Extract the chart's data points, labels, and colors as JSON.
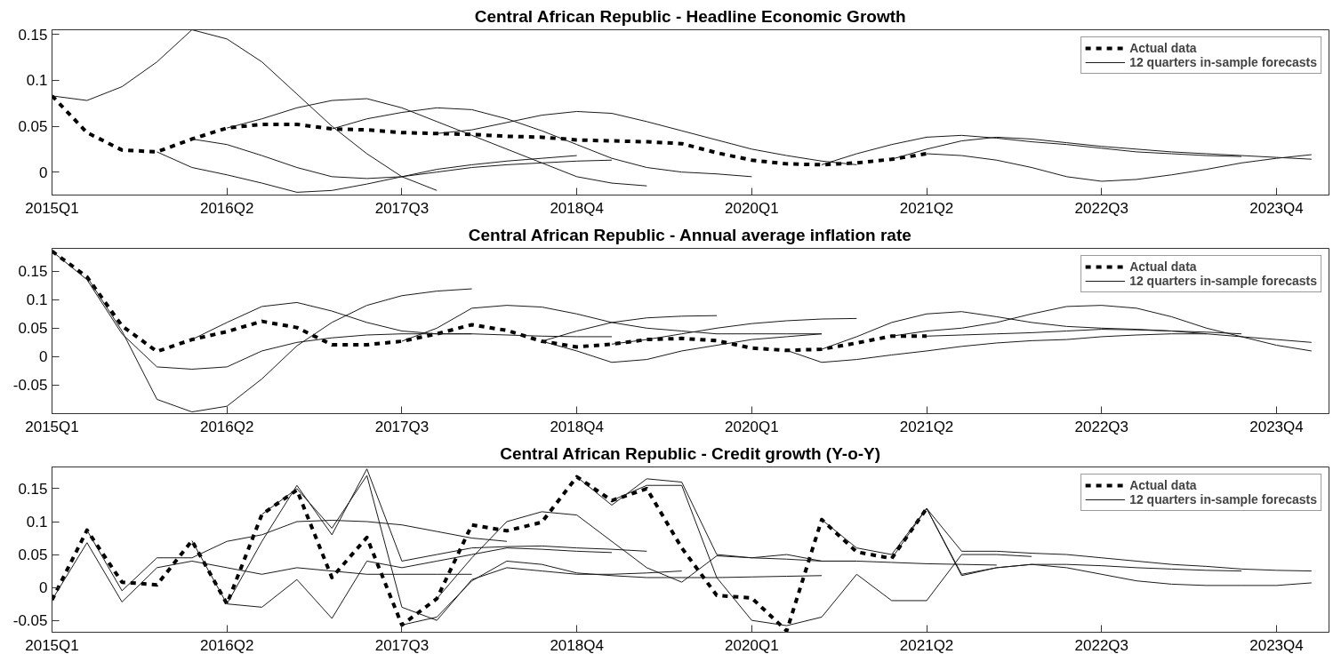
{
  "chart_data": [
    {
      "type": "line",
      "title": "Central African Republic - Headline Economic Growth",
      "legend": "top right",
      "categories": [
        "2015Q1",
        null,
        null,
        null,
        null,
        "2016Q2",
        null,
        null,
        null,
        null,
        "2017Q3",
        null,
        null,
        null,
        null,
        "2018Q4",
        null,
        null,
        null,
        null,
        "2020Q1",
        null,
        null,
        null,
        null,
        "2021Q2",
        null,
        null,
        null,
        null,
        "2022Q3",
        null,
        null,
        null,
        null,
        "2023Q4",
        null
      ],
      "ylim": [
        -0.025,
        0.155
      ],
      "yticks": [
        0,
        0.05,
        0.1,
        0.15
      ],
      "series": [
        {
          "name": "Actual data",
          "color": "#000000",
          "line_style": "dashed",
          "values": [
            0.083,
            0.043,
            0.024,
            0.022,
            0.036,
            0.048,
            0.052,
            0.052,
            0.047,
            0.046,
            0.043,
            0.042,
            0.041,
            0.039,
            0.038,
            0.035,
            0.034,
            0.033,
            0.031,
            0.021,
            0.013,
            0.009,
            0.008,
            0.01,
            0.014,
            0.02,
            null,
            null,
            null,
            null,
            null,
            null,
            null,
            null,
            null,
            null,
            null
          ]
        },
        {
          "name": "12 quarters in-sample forecasts",
          "color": "#1a1a1a",
          "line_style": "solid",
          "values": [
            0.083,
            0.078,
            0.093,
            0.12,
            0.155,
            0.145,
            0.12,
            0.085,
            0.05,
            0.02,
            -0.005,
            -0.02,
            null,
            null,
            null,
            null,
            null,
            null,
            null,
            null,
            null,
            null,
            null,
            null,
            null,
            null,
            null,
            null,
            null,
            null,
            null,
            null,
            null,
            null,
            null,
            null,
            null
          ]
        },
        {
          "color": "#1a1a1a",
          "line_style": "solid",
          "values": [
            null,
            null,
            null,
            0.022,
            0.005,
            -0.003,
            -0.012,
            -0.022,
            -0.02,
            -0.013,
            -0.005,
            0.003,
            0.008,
            0.012,
            0.015,
            0.018,
            null,
            null,
            null,
            null,
            null,
            null,
            null,
            null,
            null,
            null,
            null,
            null,
            null,
            null,
            null,
            null,
            null,
            null,
            null,
            null,
            null
          ]
        },
        {
          "color": "#1a1a1a",
          "line_style": "solid",
          "values": [
            null,
            null,
            null,
            null,
            0.036,
            0.03,
            0.018,
            0.005,
            -0.005,
            -0.007,
            -0.005,
            0,
            0.005,
            0.008,
            0.01,
            0.012,
            0.013,
            null,
            null,
            null,
            null,
            null,
            null,
            null,
            null,
            null,
            null,
            null,
            null,
            null,
            null,
            null,
            null,
            null,
            null,
            null,
            null
          ]
        },
        {
          "color": "#1a1a1a",
          "line_style": "solid",
          "values": [
            null,
            null,
            null,
            null,
            null,
            0.048,
            0.058,
            0.07,
            0.078,
            0.08,
            0.07,
            0.055,
            0.04,
            0.025,
            0.01,
            -0.005,
            -0.012,
            -0.015,
            null,
            null,
            null,
            null,
            null,
            null,
            null,
            null,
            null,
            null,
            null,
            null,
            null,
            null,
            null,
            null,
            null,
            null,
            null
          ]
        },
        {
          "color": "#1a1a1a",
          "line_style": "solid",
          "values": [
            null,
            null,
            null,
            null,
            null,
            null,
            null,
            null,
            0.047,
            0.058,
            0.065,
            0.07,
            0.068,
            0.058,
            0.045,
            0.03,
            0.015,
            0.005,
            0,
            -0.002,
            -0.005,
            null,
            null,
            null,
            null,
            null,
            null,
            null,
            null,
            null,
            null,
            null,
            null,
            null,
            null,
            null,
            null
          ]
        },
        {
          "color": "#1a1a1a",
          "line_style": "solid",
          "values": [
            null,
            null,
            null,
            null,
            null,
            null,
            null,
            null,
            null,
            null,
            null,
            0.042,
            0.046,
            0.054,
            0.062,
            0.066,
            0.064,
            0.055,
            0.045,
            0.035,
            0.025,
            0.018,
            0.012,
            0.008,
            null,
            null,
            null,
            null,
            null,
            null,
            null,
            null,
            null,
            null,
            null,
            null,
            null
          ]
        },
        {
          "color": "#1a1a1a",
          "line_style": "solid",
          "values": [
            null,
            null,
            null,
            null,
            null,
            null,
            null,
            null,
            null,
            null,
            null,
            null,
            null,
            null,
            null,
            null,
            null,
            null,
            null,
            null,
            null,
            null,
            0.008,
            0.02,
            0.03,
            0.038,
            0.04,
            0.037,
            0.033,
            0.03,
            0.026,
            0.022,
            0.02,
            0.018,
            0.017,
            null,
            null
          ]
        },
        {
          "color": "#1a1a1a",
          "line_style": "solid",
          "values": [
            null,
            null,
            null,
            null,
            null,
            null,
            null,
            null,
            null,
            null,
            null,
            null,
            null,
            null,
            null,
            null,
            null,
            null,
            null,
            null,
            null,
            null,
            null,
            null,
            0.014,
            0.025,
            0.034,
            0.038,
            0.036,
            0.032,
            0.028,
            0.025,
            0.022,
            0.02,
            0.018,
            0.016,
            0.014
          ]
        },
        {
          "color": "#1a1a1a",
          "line_style": "solid",
          "values": [
            null,
            null,
            null,
            null,
            null,
            null,
            null,
            null,
            null,
            null,
            null,
            null,
            null,
            null,
            null,
            null,
            null,
            null,
            null,
            null,
            null,
            null,
            null,
            null,
            null,
            0.02,
            0.018,
            0.013,
            0.005,
            -0.005,
            -0.01,
            -0.008,
            -0.003,
            0.003,
            0.01,
            0.015,
            0.019
          ]
        }
      ]
    },
    {
      "type": "line",
      "title": "Central African Republic - Annual average inflation rate",
      "legend": "top right",
      "categories": [
        "2015Q1",
        null,
        null,
        null,
        null,
        "2016Q2",
        null,
        null,
        null,
        null,
        "2017Q3",
        null,
        null,
        null,
        null,
        "2018Q4",
        null,
        null,
        null,
        null,
        "2020Q1",
        null,
        null,
        null,
        null,
        "2021Q2",
        null,
        null,
        null,
        null,
        "2022Q3",
        null,
        null,
        null,
        null,
        "2023Q4",
        null
      ],
      "ylim": [
        -0.1,
        0.19
      ],
      "yticks": [
        -0.05,
        0,
        0.05,
        0.1,
        0.15
      ],
      "series": [
        {
          "name": "Actual data",
          "color": "#000000",
          "line_style": "dashed",
          "values": [
            0.185,
            0.14,
            0.054,
            0.009,
            0.03,
            0.044,
            0.062,
            0.051,
            0.021,
            0.021,
            0.027,
            0.04,
            0.056,
            0.046,
            0.027,
            0.017,
            0.022,
            0.03,
            0.032,
            0.028,
            0.015,
            0.011,
            0.013,
            0.024,
            0.036,
            0.036,
            null,
            null,
            null,
            null,
            null,
            null,
            null,
            null,
            null,
            null,
            null
          ]
        },
        {
          "name": "12 quarters in-sample forecasts",
          "color": "#1a1a1a",
          "line_style": "solid",
          "values": [
            0.185,
            0.135,
            0.04,
            -0.018,
            -0.022,
            -0.018,
            0.01,
            0.025,
            0.033,
            0.038,
            0.04,
            0.04,
            0.04,
            null,
            null,
            null,
            null,
            null,
            null,
            null,
            null,
            null,
            null,
            null,
            null,
            null,
            null,
            null,
            null,
            null,
            null,
            null,
            null,
            null,
            null,
            null,
            null
          ]
        },
        {
          "color": "#1a1a1a",
          "line_style": "solid",
          "values": [
            null,
            0.14,
            0.045,
            -0.075,
            -0.097,
            -0.087,
            -0.039,
            0.019,
            0.06,
            0.09,
            0.107,
            0.115,
            0.119,
            null,
            null,
            null,
            null,
            null,
            null,
            null,
            null,
            null,
            null,
            null,
            null,
            null,
            null,
            null,
            null,
            null,
            null,
            null,
            null,
            null,
            null,
            null,
            null
          ]
        },
        {
          "color": "#1a1a1a",
          "line_style": "solid",
          "values": [
            null,
            null,
            null,
            null,
            0.03,
            0.06,
            0.088,
            0.095,
            0.08,
            0.06,
            0.045,
            0.04,
            0.04,
            0.038,
            0.036,
            0.035,
            0.035,
            null,
            null,
            null,
            null,
            null,
            null,
            null,
            null,
            null,
            null,
            null,
            null,
            null,
            null,
            null,
            null,
            null,
            null,
            null,
            null
          ]
        },
        {
          "color": "#1a1a1a",
          "line_style": "solid",
          "values": [
            null,
            null,
            null,
            null,
            null,
            null,
            null,
            null,
            null,
            null,
            0.027,
            0.05,
            0.085,
            0.09,
            0.087,
            0.075,
            0.06,
            0.05,
            0.045,
            0.04,
            0.04,
            0.04,
            0.04,
            null,
            null,
            null,
            null,
            null,
            null,
            null,
            null,
            null,
            null,
            null,
            null,
            null,
            null
          ]
        },
        {
          "color": "#1a1a1a",
          "line_style": "solid",
          "values": [
            null,
            null,
            null,
            null,
            null,
            null,
            null,
            null,
            null,
            null,
            null,
            null,
            null,
            null,
            0.027,
            0.045,
            0.06,
            0.068,
            0.071,
            0.072,
            null,
            null,
            null,
            null,
            null,
            null,
            null,
            null,
            null,
            null,
            null,
            null,
            null,
            null,
            null,
            null,
            null
          ]
        },
        {
          "color": "#1a1a1a",
          "line_style": "solid",
          "values": [
            null,
            null,
            null,
            null,
            null,
            null,
            null,
            null,
            null,
            null,
            null,
            null,
            null,
            null,
            null,
            null,
            0.022,
            0.03,
            0.04,
            0.05,
            0.058,
            0.063,
            0.066,
            0.067,
            null,
            null,
            null,
            null,
            null,
            null,
            null,
            null,
            null,
            null,
            null,
            null,
            null
          ]
        },
        {
          "color": "#1a1a1a",
          "line_style": "solid",
          "values": [
            null,
            null,
            null,
            null,
            null,
            null,
            null,
            null,
            null,
            null,
            null,
            null,
            null,
            null,
            0.027,
            0.01,
            -0.01,
            -0.005,
            0.01,
            0.02,
            0.03,
            0.035,
            0.04,
            null,
            null,
            null,
            null,
            null,
            null,
            null,
            null,
            null,
            null,
            null,
            null,
            null,
            null
          ]
        },
        {
          "color": "#1a1a1a",
          "line_style": "solid",
          "values": [
            null,
            null,
            null,
            null,
            null,
            null,
            null,
            null,
            null,
            null,
            null,
            null,
            null,
            null,
            null,
            null,
            null,
            null,
            null,
            null,
            null,
            0.011,
            -0.01,
            -0.005,
            0.003,
            0.01,
            0.018,
            0.024,
            0.028,
            0.03,
            0.035,
            0.038,
            0.04,
            0.04,
            null,
            null,
            null
          ]
        },
        {
          "color": "#1a1a1a",
          "line_style": "solid",
          "values": [
            null,
            null,
            null,
            null,
            null,
            null,
            null,
            null,
            null,
            null,
            null,
            null,
            null,
            null,
            null,
            null,
            null,
            null,
            null,
            null,
            null,
            null,
            0.013,
            0.035,
            0.06,
            0.075,
            0.079,
            0.07,
            0.06,
            0.053,
            0.05,
            0.048,
            0.045,
            0.043,
            0.04,
            null,
            null
          ]
        },
        {
          "color": "#1a1a1a",
          "line_style": "solid",
          "values": [
            null,
            null,
            null,
            null,
            null,
            null,
            null,
            null,
            null,
            null,
            null,
            null,
            null,
            null,
            null,
            null,
            null,
            null,
            null,
            null,
            null,
            null,
            null,
            null,
            0.036,
            0.045,
            0.05,
            0.06,
            0.075,
            0.088,
            0.09,
            0.085,
            0.07,
            0.05,
            0.035,
            0.02,
            0.01
          ]
        },
        {
          "color": "#1a1a1a",
          "line_style": "solid",
          "values": [
            null,
            null,
            null,
            null,
            null,
            null,
            null,
            null,
            null,
            null,
            null,
            null,
            null,
            null,
            null,
            null,
            null,
            null,
            null,
            null,
            null,
            null,
            null,
            null,
            null,
            0.036,
            0.038,
            0.04,
            0.042,
            0.045,
            0.048,
            0.047,
            0.045,
            0.04,
            0.035,
            0.03,
            0.025
          ]
        }
      ]
    },
    {
      "type": "line",
      "title": "Central African Republic - Credit growth (Y-o-Y)",
      "legend": "top right",
      "categories": [
        "2015Q1",
        null,
        null,
        null,
        null,
        "2016Q2",
        null,
        null,
        null,
        null,
        "2017Q3",
        null,
        null,
        null,
        null,
        "2018Q4",
        null,
        null,
        null,
        null,
        "2020Q1",
        null,
        null,
        null,
        null,
        "2021Q2",
        null,
        null,
        null,
        null,
        "2022Q3",
        null,
        null,
        null,
        null,
        "2023Q4",
        null
      ],
      "ylim": [
        -0.068,
        0.183
      ],
      "yticks": [
        -0.05,
        0,
        0.05,
        0.1,
        0.15
      ],
      "series": [
        {
          "name": "Actual data",
          "color": "#000000",
          "line_style": "dashed",
          "values": [
            -0.019,
            0.087,
            0.008,
            0.004,
            0.071,
            -0.025,
            0.111,
            0.148,
            0.015,
            0.076,
            -0.057,
            -0.017,
            0.095,
            0.086,
            0.099,
            0.168,
            0.132,
            0.15,
            0.06,
            -0.012,
            -0.016,
            -0.066,
            0.103,
            0.054,
            0.044,
            0.12,
            null,
            null,
            null,
            null,
            null,
            null,
            null,
            null,
            null,
            null,
            null
          ]
        },
        {
          "name": "12 quarters in-sample forecasts",
          "color": "#1a1a1a",
          "line_style": "solid",
          "values": [
            -0.019,
            0.068,
            -0.022,
            0.03,
            0.04,
            0.03,
            0.02,
            0.03,
            0.025,
            0.02,
            0.02,
            0.02,
            0.02,
            null,
            null,
            null,
            null,
            null,
            null,
            null,
            null,
            null,
            null,
            null,
            null,
            null,
            null,
            null,
            null,
            null,
            null,
            null,
            null,
            null,
            null,
            null,
            null
          ]
        },
        {
          "color": "#1a1a1a",
          "line_style": "solid",
          "values": [
            null,
            0.087,
            -0.005,
            0.045,
            0.045,
            0.07,
            0.08,
            0.1,
            0.102,
            0.1,
            0.095,
            0.085,
            0.075,
            0.07,
            null,
            null,
            null,
            null,
            null,
            null,
            null,
            null,
            null,
            null,
            null,
            null,
            null,
            null,
            null,
            null,
            null,
            null,
            null,
            null,
            null,
            null,
            null
          ]
        },
        {
          "color": "#1a1a1a",
          "line_style": "solid",
          "values": [
            null,
            null,
            null,
            null,
            0.071,
            -0.025,
            -0.03,
            0.012,
            -0.047,
            0.04,
            0.03,
            0.04,
            0.05,
            0.06,
            0.058,
            0.055,
            0.053,
            null,
            null,
            null,
            null,
            null,
            null,
            null,
            null,
            null,
            null,
            null,
            null,
            null,
            null,
            null,
            null,
            null,
            null,
            null,
            null
          ]
        },
        {
          "color": "#1a1a1a",
          "line_style": "solid",
          "values": [
            null,
            null,
            null,
            null,
            null,
            -0.025,
            0.07,
            0.155,
            0.08,
            0.18,
            0.04,
            0.05,
            0.06,
            0.062,
            0.063,
            0.06,
            0.058,
            0.055,
            null,
            null,
            null,
            null,
            null,
            null,
            null,
            null,
            null,
            null,
            null,
            null,
            null,
            null,
            null,
            null,
            null,
            null,
            null
          ]
        },
        {
          "color": "#1a1a1a",
          "line_style": "solid",
          "values": [
            null,
            null,
            null,
            null,
            null,
            null,
            0.111,
            0.15,
            0.09,
            0.17,
            -0.03,
            -0.05,
            0.012,
            0.03,
            0.025,
            0.02,
            0.02,
            0.022,
            0.025,
            null,
            null,
            null,
            null,
            null,
            null,
            null,
            null,
            null,
            null,
            null,
            null,
            null,
            null,
            null,
            null,
            null,
            null
          ]
        },
        {
          "color": "#1a1a1a",
          "line_style": "solid",
          "values": [
            null,
            null,
            null,
            null,
            null,
            null,
            null,
            null,
            null,
            null,
            -0.057,
            -0.045,
            0.01,
            0.04,
            0.035,
            0.022,
            0.018,
            0.015,
            0.015,
            0.015,
            0.016,
            0.017,
            0.018,
            null,
            null,
            null,
            null,
            null,
            null,
            null,
            null,
            null,
            null,
            null,
            null,
            null,
            null
          ]
        },
        {
          "color": "#1a1a1a",
          "line_style": "solid",
          "values": [
            null,
            null,
            null,
            null,
            null,
            null,
            null,
            null,
            null,
            null,
            null,
            -0.017,
            0.045,
            0.1,
            0.115,
            0.11,
            0.07,
            0.03,
            0.008,
            0.048,
            0.045,
            0.043,
            0.04,
            0.04,
            null,
            null,
            null,
            null,
            null,
            null,
            null,
            null,
            null,
            null,
            null,
            null,
            null
          ]
        },
        {
          "color": "#1a1a1a",
          "line_style": "solid",
          "values": [
            null,
            null,
            null,
            null,
            null,
            null,
            null,
            null,
            null,
            null,
            null,
            null,
            null,
            null,
            null,
            0.168,
            0.125,
            0.165,
            0.16,
            0.05,
            0.045,
            0.05,
            0.04,
            0.04,
            0.038,
            0.036,
            0.035,
            0.034,
            null,
            null,
            null,
            null,
            null,
            null,
            null,
            null,
            null
          ]
        },
        {
          "color": "#1a1a1a",
          "line_style": "solid",
          "values": [
            null,
            null,
            null,
            null,
            null,
            null,
            null,
            null,
            null,
            null,
            null,
            null,
            null,
            null,
            null,
            null,
            0.132,
            0.155,
            0.155,
            0.015,
            -0.05,
            -0.058,
            -0.045,
            0.02,
            -0.02,
            -0.02,
            0.05,
            0.05,
            0.047,
            null,
            null,
            null,
            null,
            null,
            null,
            null,
            null
          ]
        },
        {
          "color": "#1a1a1a",
          "line_style": "solid",
          "values": [
            null,
            null,
            null,
            null,
            null,
            null,
            null,
            null,
            null,
            null,
            null,
            null,
            null,
            null,
            null,
            null,
            null,
            null,
            null,
            null,
            null,
            null,
            0.103,
            0.06,
            0.05,
            0.12,
            0.02,
            0.03,
            0.035,
            0.035,
            0.033,
            0.03,
            0.028,
            0.026,
            0.025,
            null,
            null
          ]
        },
        {
          "color": "#1a1a1a",
          "line_style": "solid",
          "values": [
            null,
            null,
            null,
            null,
            null,
            null,
            null,
            null,
            null,
            null,
            null,
            null,
            null,
            null,
            null,
            null,
            null,
            null,
            null,
            null,
            null,
            null,
            null,
            null,
            0.044,
            0.12,
            0.018,
            0.03,
            0.035,
            0.03,
            0.02,
            0.01,
            0.005,
            0.003,
            0.003,
            0.003,
            0.007
          ]
        },
        {
          "color": "#1a1a1a",
          "line_style": "solid",
          "values": [
            null,
            null,
            null,
            null,
            null,
            null,
            null,
            null,
            null,
            null,
            null,
            null,
            null,
            null,
            null,
            null,
            null,
            null,
            null,
            null,
            null,
            null,
            null,
            null,
            null,
            0.12,
            0.055,
            0.055,
            0.052,
            0.05,
            0.045,
            0.04,
            0.035,
            0.032,
            0.028,
            0.026,
            0.025
          ]
        }
      ]
    }
  ]
}
